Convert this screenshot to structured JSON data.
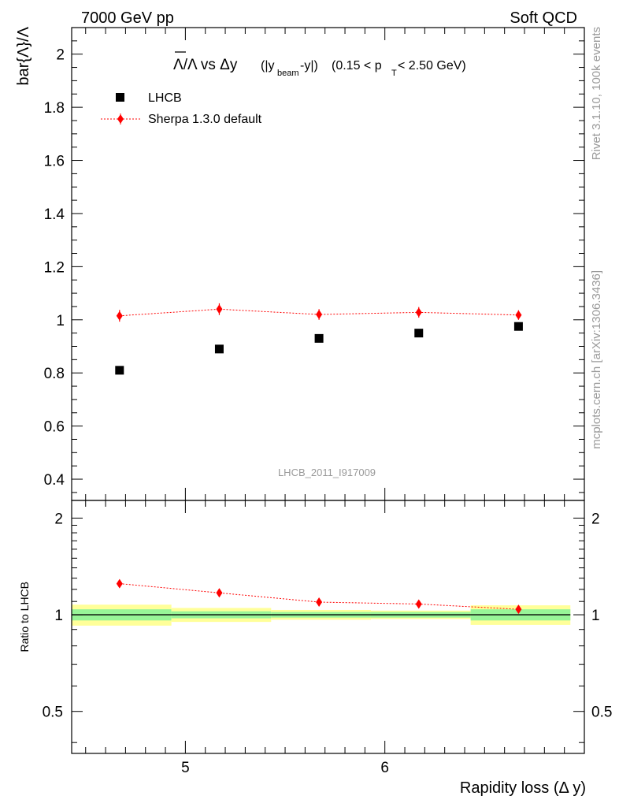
{
  "header": {
    "left_label": "7000 GeV pp",
    "right_label": "Soft QCD"
  },
  "side_labels": {
    "rivet": "Rivet 3.1.10,  100k events",
    "mcplots": "mcplots.cern.ch [arXiv:1306.3436]"
  },
  "main_plot": {
    "title_prefix": "Λ/Λ vs Δy",
    "title_sub_open": "(|y",
    "title_sub_beam": "beam",
    "title_sub_close": "-y|)",
    "title_range_a": "(0.15 < p",
    "title_range_T": "T",
    "title_range_b": " < 2.50 GeV)",
    "ylabel": "bar{Λ}/Λ",
    "watermark": "LHCB_2011_I917009",
    "legend": [
      {
        "name": "LHCB",
        "color": "#000000"
      },
      {
        "name": "Sherpa 1.3.0 default",
        "color": "#ff0000"
      }
    ]
  },
  "ratio_plot": {
    "ylabel": "Ratio to LHCB"
  },
  "xlabel": "Rapidity loss (Δ y)",
  "colors": {
    "data": "#000000",
    "mc": "#ff0000",
    "band_inner": "#98f598",
    "band_outer": "#ffff99"
  },
  "chart_data": [
    {
      "type": "scatter",
      "title": "Λ/Λ vs Δy (|y_beam-y|) (0.15 < p_T < 2.50 GeV)",
      "xlabel": "Rapidity loss (Δ y)",
      "ylabel": "bar{Λ}/Λ",
      "xlim": [
        4.43,
        7.0
      ],
      "ylim": [
        0.32,
        2.1
      ],
      "x_ticks": [
        "5",
        "6"
      ],
      "y_ticks": [
        "0.4",
        "0.6",
        "0.8",
        "1",
        "1.2",
        "1.4",
        "1.6",
        "1.8",
        "2"
      ],
      "series": [
        {
          "name": "LHCB",
          "x": [
            4.67,
            5.17,
            5.67,
            6.17,
            6.67
          ],
          "y": [
            0.81,
            0.89,
            0.93,
            0.95,
            0.975
          ]
        },
        {
          "name": "Sherpa 1.3.0 default",
          "x": [
            4.67,
            5.17,
            5.67,
            6.17,
            6.67
          ],
          "y": [
            1.015,
            1.04,
            1.02,
            1.028,
            1.018
          ],
          "yerr": [
            0.022,
            0.022,
            0.02,
            0.02,
            0.018
          ]
        }
      ]
    },
    {
      "type": "scatter",
      "title": "",
      "xlabel": "Rapidity loss (Δ y)",
      "ylabel": "Ratio to LHCB",
      "xlim": [
        4.43,
        7.0
      ],
      "ylim": [
        0.37,
        2.27
      ],
      "y_scale": "log",
      "y_ticks": [
        "0.5",
        "1",
        "2"
      ],
      "x_bins": [
        [
          4.43,
          4.93
        ],
        [
          4.93,
          5.43
        ],
        [
          5.43,
          5.93
        ],
        [
          5.93,
          6.43
        ],
        [
          6.43,
          6.93
        ]
      ],
      "band_inner": [
        0.04,
        0.025,
        0.02,
        0.02,
        0.04
      ],
      "band_outer": [
        0.075,
        0.05,
        0.035,
        0.03,
        0.07
      ],
      "series": [
        {
          "name": "Sherpa 1.3.0 default",
          "x": [
            4.67,
            5.17,
            5.67,
            6.17,
            6.67
          ],
          "y": [
            1.25,
            1.17,
            1.095,
            1.08,
            1.04
          ]
        }
      ]
    }
  ]
}
